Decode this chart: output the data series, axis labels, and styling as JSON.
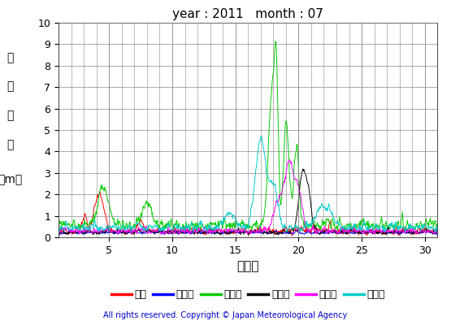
{
  "title": "year : 2011   month : 07",
  "xlabel": "（日）",
  "ylabel_chars": [
    "有",
    "義",
    "波",
    "高",
    "（m）"
  ],
  "xlim": [
    1,
    31
  ],
  "ylim": [
    0,
    10
  ],
  "yticks": [
    0,
    1,
    2,
    3,
    4,
    5,
    6,
    7,
    8,
    9,
    10
  ],
  "xticks": [
    5,
    10,
    15,
    20,
    25,
    30
  ],
  "copyright": "All rights reserved. Copyright © Japan Meteorological Agency",
  "legend_entries": [
    "松前",
    "江ノ島",
    "石廀崎",
    "経ヶ岸",
    "福江島",
    "佐多岸"
  ],
  "legend_colors": [
    "#ff0000",
    "#0000ff",
    "#00cc00",
    "#000000",
    "#ff00ff",
    "#00cccc"
  ],
  "bg_color": "#ffffff",
  "grid_color": "#888888",
  "n_points": 744
}
